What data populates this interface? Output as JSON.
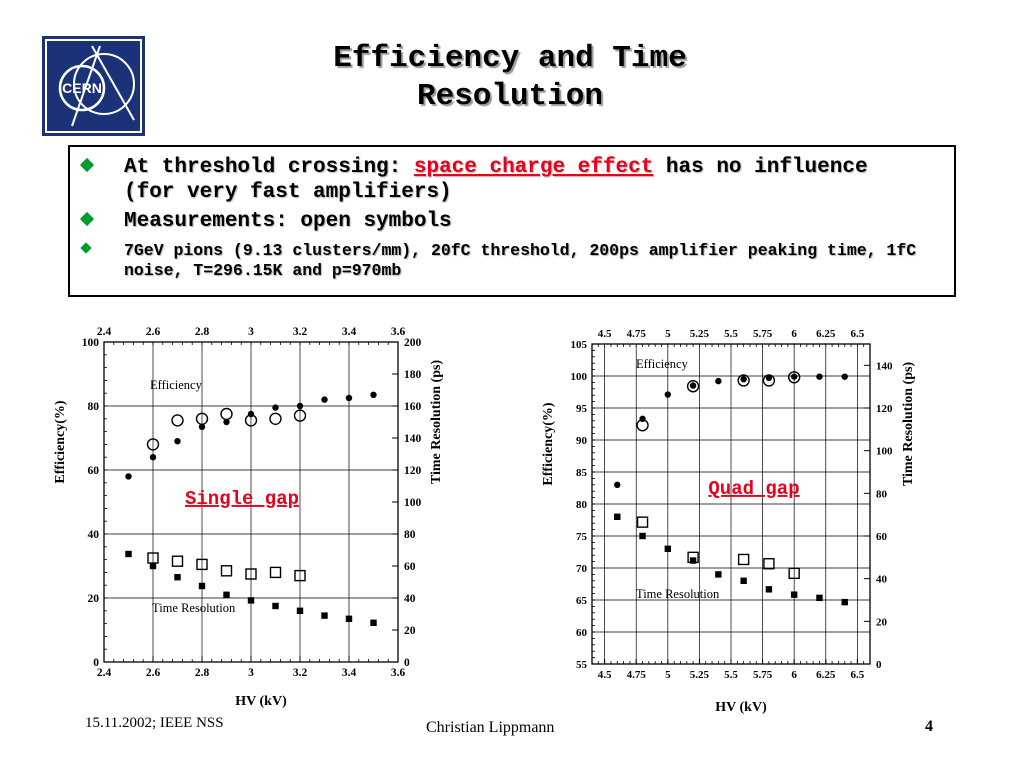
{
  "logo": {
    "text": "CERN",
    "color": "#1c3278"
  },
  "title": {
    "line1": "Efficiency and Time",
    "line2": "Resolution"
  },
  "bullets": [
    {
      "pre": "At threshold crossing: ",
      "highlight": "space charge effect",
      "post": " has no influence (for very fast amplifiers)"
    },
    {
      "text": "Measurements: open symbols"
    },
    {
      "text": "7GeV pions (9.13 clusters/mm), 20fC threshold, 200ps amplifier peaking time, 1fC noise, T=296.15K and p=970mb"
    }
  ],
  "colors": {
    "bullet": "#009a2e",
    "highlight": "#e8001c",
    "chart_label": "#e8001c"
  },
  "chart_data": [
    {
      "type": "scatter",
      "label": "Single gap",
      "xlabel": "HV (kV)",
      "ylabel": "Efficiency(%)",
      "y2label": "Time Resolution (ps)",
      "xlim": [
        2.4,
        3.6
      ],
      "ylim": [
        0,
        100
      ],
      "y2lim": [
        0,
        200
      ],
      "xticks": [
        "2.4",
        "2.6",
        "2.8",
        "3",
        "3.2",
        "3.4",
        "3.6"
      ],
      "yticks": [
        "0",
        "20",
        "40",
        "60",
        "80",
        "100"
      ],
      "y2ticks": [
        "0",
        "20",
        "40",
        "60",
        "80",
        "100",
        "120",
        "140",
        "160",
        "180",
        "200"
      ],
      "grid": true,
      "annotations": {
        "efficiency": "Efficiency",
        "time": "Time Resolution"
      },
      "series": [
        {
          "name": "Efficiency",
          "axis": "y",
          "marker": "filled-circle",
          "x": [
            2.5,
            2.6,
            2.7,
            2.8,
            2.9,
            3.0,
            3.1,
            3.2,
            3.3,
            3.4,
            3.5
          ],
          "y": [
            58,
            64,
            69,
            73.5,
            75,
            77.5,
            79.5,
            80,
            82,
            82.5,
            83.5
          ]
        },
        {
          "name": "Efficiency",
          "axis": "y",
          "marker": "open-circle",
          "x": [
            2.6,
            2.7,
            2.8,
            2.9,
            3.0,
            3.1,
            3.2
          ],
          "y": [
            68,
            75.5,
            76,
            77.5,
            75.5,
            76,
            77
          ]
        },
        {
          "name": "Time Resolution",
          "axis": "y2",
          "marker": "filled-square",
          "x": [
            2.5,
            2.6,
            2.7,
            2.8,
            2.9,
            3.0,
            3.1,
            3.2,
            3.3,
            3.4,
            3.5
          ],
          "y": [
            67.5,
            60,
            53,
            47.5,
            42,
            38.5,
            35,
            32,
            29,
            27,
            24.5
          ]
        },
        {
          "name": "Time Resolution",
          "axis": "y2",
          "marker": "open-square",
          "x": [
            2.6,
            2.7,
            2.8,
            2.9,
            3.0,
            3.1,
            3.2
          ],
          "y": [
            65,
            63,
            61,
            57,
            55,
            56,
            54
          ]
        }
      ]
    },
    {
      "type": "scatter",
      "label": "Quad gap",
      "xlabel": "HV (kV)",
      "ylabel": "Efficiency(%)",
      "y2label": "Time Resolution (ps)",
      "xlim": [
        4.4,
        6.6
      ],
      "ylim": [
        55,
        105
      ],
      "y2lim": [
        0,
        150
      ],
      "xticks": [
        "4.5",
        "4.75",
        "5",
        "5.25",
        "5.5",
        "5.75",
        "6",
        "6.25",
        "6.5"
      ],
      "yticks": [
        "55",
        "60",
        "65",
        "70",
        "75",
        "80",
        "85",
        "90",
        "95",
        "100",
        "105"
      ],
      "y2ticks": [
        "0",
        "20",
        "40",
        "60",
        "80",
        "100",
        "120",
        "140"
      ],
      "grid": true,
      "annotations": {
        "efficiency": "Efficiency",
        "time": "Time Resolution"
      },
      "series": [
        {
          "name": "Efficiency",
          "axis": "y",
          "marker": "filled-circle",
          "x": [
            4.6,
            4.8,
            5.0,
            5.2,
            5.4,
            5.6,
            5.8,
            6.0,
            6.2,
            6.4
          ],
          "y": [
            83,
            93.3,
            97.1,
            98.5,
            99.2,
            99.5,
            99.7,
            99.9,
            99.9,
            99.9
          ]
        },
        {
          "name": "Efficiency",
          "axis": "y",
          "marker": "open-circle",
          "x": [
            4.8,
            5.2,
            5.6,
            5.8,
            6.0
          ],
          "y": [
            92.3,
            98.4,
            99.3,
            99.3,
            99.8
          ]
        },
        {
          "name": "Time Resolution",
          "axis": "y2",
          "marker": "filled-square",
          "x": [
            4.6,
            4.8,
            5.0,
            5.2,
            5.4,
            5.6,
            5.8,
            6.0,
            6.2,
            6.4
          ],
          "y": [
            69,
            60,
            54,
            48.5,
            42,
            39,
            35,
            32.5,
            31,
            29
          ]
        },
        {
          "name": "Time Resolution",
          "axis": "y2",
          "marker": "open-square",
          "x": [
            4.8,
            5.2,
            5.6,
            5.8,
            6.0
          ],
          "y": [
            66.5,
            50,
            49,
            47,
            42.5
          ]
        }
      ]
    }
  ],
  "footer": {
    "left": "15.11.2002; IEEE NSS",
    "center": "Christian Lippmann",
    "page": "4"
  }
}
